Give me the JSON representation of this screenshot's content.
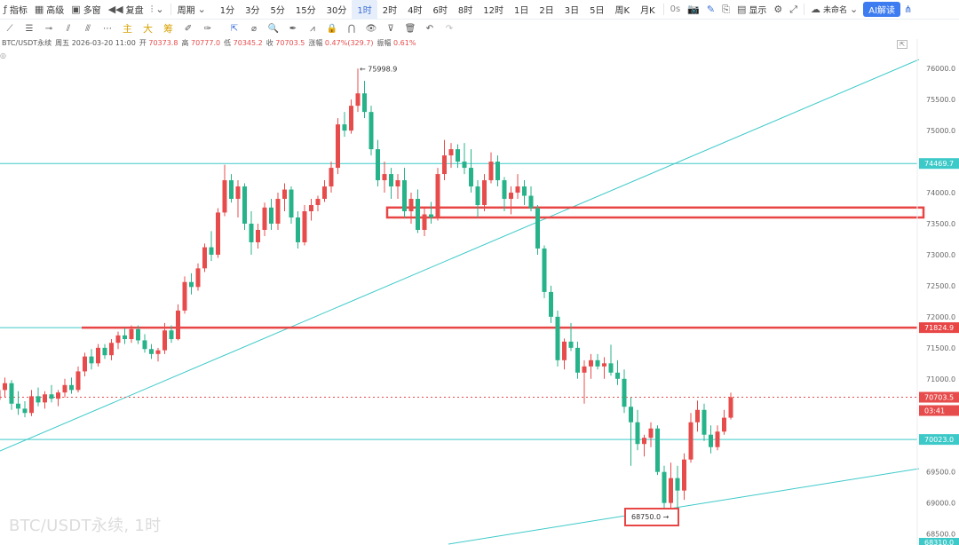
{
  "toolbar": {
    "indicators": "指标",
    "advanced": "高级",
    "multi_window": "多窗",
    "restore": "复盘",
    "period": "周期",
    "intervals": [
      "1分",
      "3分",
      "5分",
      "15分",
      "30分",
      "1时",
      "2时",
      "4时",
      "6时",
      "8时",
      "12时",
      "1日",
      "2日",
      "3日",
      "5日",
      "周K",
      "月K"
    ],
    "active_interval": "1时",
    "countdown": "0s",
    "display": "显示",
    "unnamed": "未命名",
    "ai_button": "AI解读"
  },
  "drawing_tools": {
    "indicator_labels": [
      "主",
      "大",
      "筹"
    ]
  },
  "info": {
    "symbol": "BTC/USDT永续",
    "date": "周五 2026-03-20 11:00",
    "open_label": "开",
    "open": "70373.8",
    "high_label": "高",
    "high": "70777.0",
    "low_label": "低",
    "low": "70345.2",
    "close_label": "收",
    "close": "70703.5",
    "change_label": "涨幅",
    "change": "0.47%(329.7)",
    "amplitude_label": "振幅",
    "amplitude": "0.61%"
  },
  "watermark": "BTC/USDT永续, 1时",
  "colors": {
    "up": "#e74c4c",
    "down": "#27b38a",
    "line": "#3ec9c9",
    "zone": "#e84545",
    "active": "#3b6fd8"
  },
  "chart_data": {
    "type": "candlestick",
    "symbol": "BTC/USDT永续",
    "timeframe": "1时",
    "price_axis": {
      "labels": [
        "76000.0",
        "75500.0",
        "75000.0",
        "74000.0",
        "73500.0",
        "73000.0",
        "72500.0",
        "72000.0",
        "71500.0",
        "71000.0",
        "70500.0",
        "69500.0",
        "69000.0",
        "68500.0"
      ]
    },
    "price_labels": {
      "level_74469": "74469.7",
      "level_71824": "71824.9",
      "current": "70703.5",
      "countdown": "03:41",
      "level_70023": "70023.0",
      "bottom_cut": "68310.0"
    },
    "annotations": {
      "high": "75998.9",
      "low": "68750.0"
    },
    "horizontal_levels": [
      74469.7,
      71824.9,
      70023.0
    ],
    "current_price": 70703.5,
    "zone": [
      73600,
      73760
    ],
    "candles": [
      [
        70660,
        70960,
        70540,
        70820
      ],
      [
        70820,
        71020,
        70700,
        70930
      ],
      [
        70930,
        70980,
        70500,
        70600
      ],
      [
        70600,
        70800,
        70420,
        70520
      ],
      [
        70520,
        70640,
        70380,
        70450
      ],
      [
        70450,
        70820,
        70400,
        70720
      ],
      [
        70720,
        70860,
        70560,
        70620
      ],
      [
        70620,
        70800,
        70520,
        70750
      ],
      [
        70750,
        70900,
        70620,
        70680
      ],
      [
        70680,
        70820,
        70560,
        70780
      ],
      [
        70780,
        71000,
        70700,
        70900
      ],
      [
        70900,
        71020,
        70760,
        70820
      ],
      [
        70820,
        71200,
        70780,
        71120
      ],
      [
        71120,
        71420,
        71040,
        71360
      ],
      [
        71360,
        71480,
        71150,
        71250
      ],
      [
        71250,
        71560,
        71200,
        71500
      ],
      [
        71500,
        71560,
        71320,
        71380
      ],
      [
        71380,
        71640,
        71300,
        71580
      ],
      [
        71580,
        71760,
        71480,
        71700
      ],
      [
        71700,
        71820,
        71560,
        71640
      ],
      [
        71640,
        71860,
        71580,
        71800
      ],
      [
        71800,
        71860,
        71560,
        71620
      ],
      [
        71620,
        71720,
        71420,
        71480
      ],
      [
        71480,
        71560,
        71320,
        71400
      ],
      [
        71400,
        71500,
        71280,
        71460
      ],
      [
        71460,
        71900,
        71400,
        71780
      ],
      [
        71780,
        71860,
        71580,
        71640
      ],
      [
        71640,
        72200,
        71620,
        72100
      ],
      [
        72100,
        72650,
        72050,
        72560
      ],
      [
        72560,
        72700,
        72360,
        72480
      ],
      [
        72480,
        72860,
        72420,
        72780
      ],
      [
        72780,
        73180,
        72720,
        73120
      ],
      [
        73120,
        73380,
        72900,
        73000
      ],
      [
        73000,
        73750,
        72950,
        73680
      ],
      [
        73680,
        74450,
        73620,
        74200
      ],
      [
        74200,
        74300,
        73840,
        73900
      ],
      [
        73900,
        74200,
        73600,
        74100
      ],
      [
        74100,
        74150,
        73400,
        73500
      ],
      [
        73500,
        73700,
        73000,
        73200
      ],
      [
        73200,
        73500,
        73100,
        73400
      ],
      [
        73400,
        73840,
        73300,
        73760
      ],
      [
        73760,
        73900,
        73400,
        73500
      ],
      [
        73500,
        74000,
        73400,
        73900
      ],
      [
        73900,
        74150,
        73700,
        74050
      ],
      [
        74050,
        74100,
        73500,
        73600
      ],
      [
        73600,
        73700,
        73100,
        73200
      ],
      [
        73200,
        73800,
        73150,
        73700
      ],
      [
        73700,
        73900,
        73550,
        73800
      ],
      [
        73800,
        73950,
        73700,
        73900
      ],
      [
        73900,
        74200,
        73850,
        74100
      ],
      [
        74100,
        74500,
        74000,
        74400
      ],
      [
        74400,
        75200,
        74300,
        75100
      ],
      [
        75100,
        75300,
        74900,
        75000
      ],
      [
        75000,
        75500,
        74950,
        75400
      ],
      [
        75400,
        75998.9,
        75300,
        75600
      ],
      [
        75600,
        75800,
        75200,
        75300
      ],
      [
        75300,
        75400,
        74600,
        74700
      ],
      [
        74700,
        74850,
        74100,
        74200
      ],
      [
        74200,
        74500,
        74000,
        74300
      ],
      [
        74300,
        74400,
        73900,
        74100
      ],
      [
        74100,
        74300,
        73900,
        74200
      ],
      [
        74200,
        74400,
        73600,
        73700
      ],
      [
        73700,
        74000,
        73500,
        73900
      ],
      [
        73900,
        74050,
        73350,
        73400
      ],
      [
        73400,
        73750,
        73300,
        73650
      ],
      [
        73650,
        73850,
        73500,
        73600
      ],
      [
        73600,
        74400,
        73550,
        74300
      ],
      [
        74300,
        74850,
        74200,
        74600
      ],
      [
        74600,
        74800,
        74400,
        74700
      ],
      [
        74700,
        74780,
        74400,
        74500
      ],
      [
        74500,
        74800,
        74300,
        74400
      ],
      [
        74400,
        74700,
        74000,
        74100
      ],
      [
        74100,
        74200,
        73600,
        73800
      ],
      [
        73800,
        74300,
        73700,
        74200
      ],
      [
        74200,
        74650,
        74150,
        74500
      ],
      [
        74500,
        74600,
        74100,
        74200
      ],
      [
        74200,
        74250,
        73700,
        73900
      ],
      [
        73900,
        74100,
        73650,
        74000
      ],
      [
        74000,
        74300,
        73900,
        74100
      ],
      [
        74100,
        74200,
        73800,
        73950
      ],
      [
        73950,
        74100,
        73700,
        73750
      ],
      [
        73750,
        73800,
        73000,
        73100
      ],
      [
        73100,
        73150,
        72300,
        72400
      ],
      [
        72400,
        72500,
        71900,
        72000
      ],
      [
        72000,
        72100,
        71200,
        71300
      ],
      [
        71300,
        71650,
        71150,
        71600
      ],
      [
        71600,
        71900,
        71450,
        71500
      ],
      [
        71500,
        71600,
        71000,
        71100
      ],
      [
        71100,
        71300,
        70600,
        71200
      ],
      [
        71200,
        71400,
        71000,
        71300
      ],
      [
        71300,
        71400,
        71150,
        71200
      ],
      [
        71200,
        71350,
        71000,
        71250
      ],
      [
        71250,
        71550,
        71050,
        71100
      ],
      [
        71100,
        71300,
        70900,
        71000
      ],
      [
        71000,
        71150,
        70450,
        70550
      ],
      [
        70550,
        70700,
        69600,
        70300
      ],
      [
        70300,
        70500,
        69850,
        69950
      ],
      [
        69950,
        70100,
        69750,
        70050
      ],
      [
        70050,
        70300,
        69900,
        70200
      ],
      [
        70200,
        70250,
        69450,
        69500
      ],
      [
        69500,
        69600,
        68800,
        69000
      ],
      [
        69000,
        69650,
        68750,
        69400
      ],
      [
        69400,
        69600,
        68900,
        69200
      ],
      [
        69200,
        69800,
        69050,
        69700
      ],
      [
        69700,
        70450,
        69650,
        70300
      ],
      [
        70300,
        70650,
        70150,
        70500
      ],
      [
        70500,
        70600,
        70000,
        70100
      ],
      [
        70100,
        70250,
        69800,
        69900
      ],
      [
        69900,
        70250,
        69850,
        70150
      ],
      [
        70150,
        70500,
        70100,
        70373.8
      ],
      [
        70373.8,
        70777,
        70345.2,
        70703.5
      ]
    ]
  }
}
